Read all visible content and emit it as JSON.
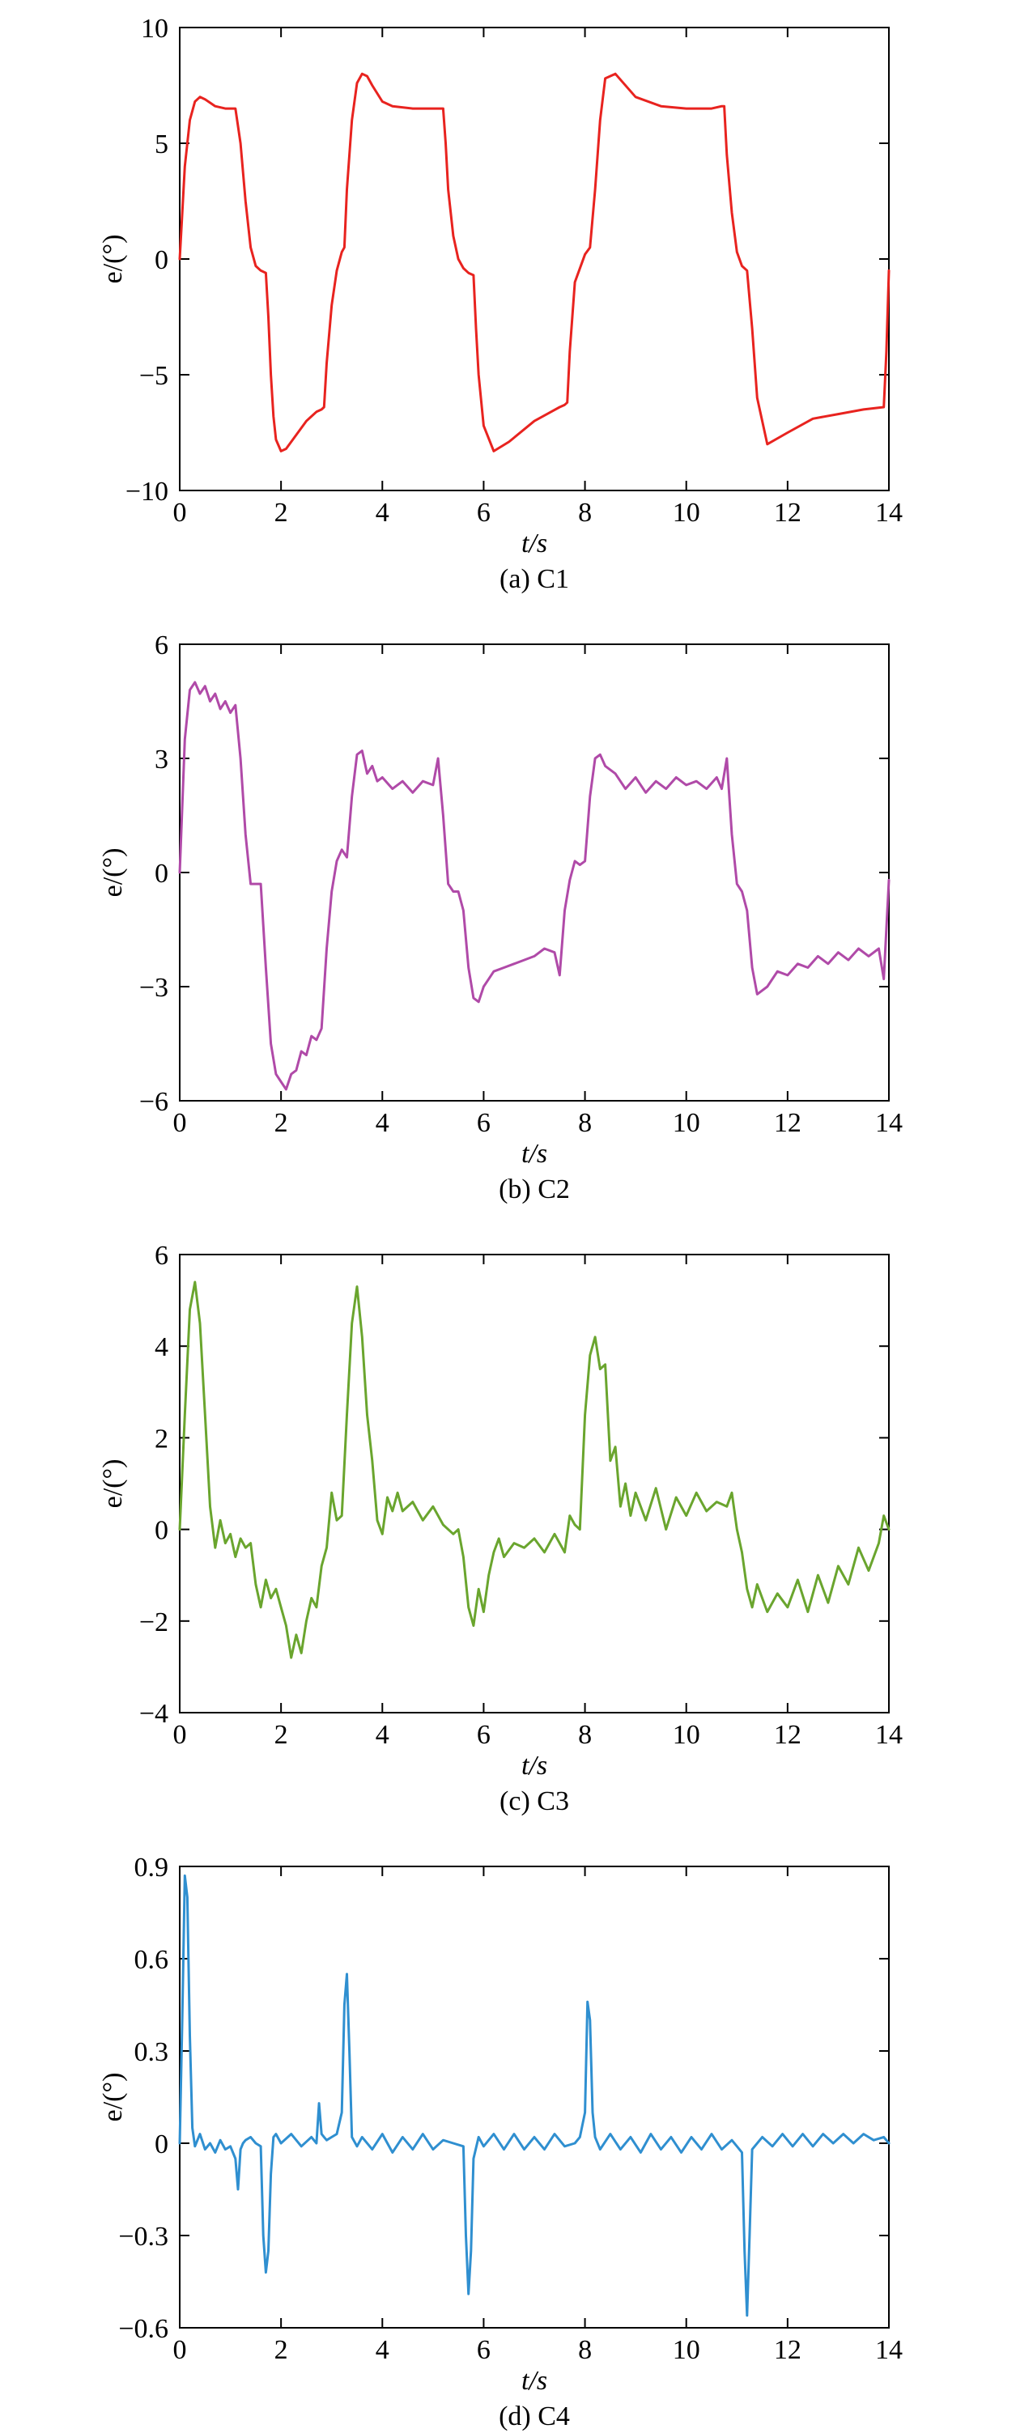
{
  "chart_data": [
    {
      "type": "line",
      "caption": "(a) C1",
      "xlabel": "t/s",
      "ylabel": "e/(°)",
      "xlim": [
        0,
        14
      ],
      "ylim": [
        -10,
        10
      ],
      "xticks": [
        "0",
        "2",
        "4",
        "6",
        "8",
        "10",
        "12",
        "14"
      ],
      "yticks": [
        "−10",
        "−5",
        "0",
        "5",
        "10"
      ],
      "ytick_values": [
        -10,
        -5,
        0,
        5,
        10
      ],
      "grid": false,
      "color": "#e8231f",
      "series": [
        {
          "x": [
            0,
            0.1,
            0.2,
            0.3,
            0.4,
            0.5,
            0.7,
            0.9,
            1.1,
            1.2,
            1.3,
            1.4,
            1.5,
            1.6,
            1.7,
            1.75,
            1.8,
            1.85,
            1.9,
            2.0,
            2.1,
            2.3,
            2.5,
            2.7,
            2.8,
            2.85,
            2.9,
            3.0,
            3.1,
            3.2,
            3.25,
            3.3,
            3.4,
            3.5,
            3.6,
            3.7,
            3.8,
            4.0,
            4.2,
            4.6,
            5.0,
            5.2,
            5.25,
            5.3,
            5.4,
            5.5,
            5.6,
            5.7,
            5.8,
            5.85,
            5.9,
            6.0,
            6.2,
            6.5,
            7.0,
            7.5,
            7.6,
            7.65,
            7.7,
            7.8,
            8.0,
            8.1,
            8.2,
            8.3,
            8.4,
            8.6,
            9.0,
            9.5,
            10.0,
            10.5,
            10.7,
            10.75,
            10.8,
            10.9,
            11.0,
            11.1,
            11.2,
            11.3,
            11.4,
            11.6,
            12.0,
            12.5,
            13.0,
            13.5,
            13.9,
            13.95,
            14.0
          ],
          "y": [
            0,
            4.0,
            6.0,
            6.8,
            7.0,
            6.9,
            6.6,
            6.5,
            6.5,
            5.0,
            2.5,
            0.5,
            -0.3,
            -0.5,
            -0.6,
            -2.5,
            -5.0,
            -6.8,
            -7.8,
            -8.3,
            -8.2,
            -7.6,
            -7.0,
            -6.6,
            -6.5,
            -6.4,
            -4.5,
            -2.0,
            -0.5,
            0.3,
            0.5,
            3.0,
            6.0,
            7.6,
            8.0,
            7.9,
            7.5,
            6.8,
            6.6,
            6.5,
            6.5,
            6.5,
            5.0,
            3.0,
            1.0,
            0.0,
            -0.4,
            -0.6,
            -0.7,
            -3.0,
            -5.0,
            -7.2,
            -8.3,
            -7.9,
            -7.0,
            -6.4,
            -6.3,
            -6.2,
            -4.0,
            -1.0,
            0.2,
            0.5,
            3.0,
            6.0,
            7.8,
            8.0,
            7.0,
            6.6,
            6.5,
            6.5,
            6.6,
            6.6,
            4.5,
            2.0,
            0.3,
            -0.3,
            -0.5,
            -3.0,
            -6.0,
            -8.0,
            -7.5,
            -6.9,
            -6.7,
            -6.5,
            -6.4,
            -4.0,
            -0.5
          ]
        }
      ]
    },
    {
      "type": "line",
      "caption": "(b) C2",
      "xlabel": "t/s",
      "ylabel": "e/(°)",
      "xlim": [
        0,
        14
      ],
      "ylim": [
        -6,
        6
      ],
      "xticks": [
        "0",
        "2",
        "4",
        "6",
        "8",
        "10",
        "12",
        "14"
      ],
      "yticks": [
        "−6",
        "−3",
        "0",
        "3",
        "6"
      ],
      "ytick_values": [
        -6,
        -3,
        0,
        3,
        6
      ],
      "grid": false,
      "color": "#b04aa8",
      "series": [
        {
          "x": [
            0,
            0.1,
            0.2,
            0.3,
            0.4,
            0.5,
            0.6,
            0.7,
            0.8,
            0.9,
            1.0,
            1.1,
            1.2,
            1.3,
            1.4,
            1.6,
            1.7,
            1.8,
            1.9,
            2.0,
            2.1,
            2.2,
            2.3,
            2.4,
            2.5,
            2.6,
            2.7,
            2.8,
            2.9,
            3.0,
            3.1,
            3.2,
            3.3,
            3.4,
            3.5,
            3.6,
            3.7,
            3.8,
            3.9,
            4.0,
            4.2,
            4.4,
            4.6,
            4.8,
            5.0,
            5.1,
            5.2,
            5.3,
            5.4,
            5.5,
            5.6,
            5.7,
            5.8,
            5.9,
            6.0,
            6.1,
            6.2,
            6.4,
            6.6,
            6.8,
            7.0,
            7.2,
            7.4,
            7.5,
            7.6,
            7.7,
            7.8,
            7.9,
            8.0,
            8.1,
            8.2,
            8.3,
            8.4,
            8.6,
            8.8,
            9.0,
            9.2,
            9.4,
            9.6,
            9.8,
            10.0,
            10.2,
            10.4,
            10.6,
            10.7,
            10.8,
            10.9,
            11.0,
            11.1,
            11.2,
            11.3,
            11.4,
            11.6,
            11.8,
            12.0,
            12.2,
            12.4,
            12.6,
            12.8,
            13.0,
            13.2,
            13.4,
            13.6,
            13.8,
            13.9,
            14.0
          ],
          "y": [
            0,
            3.5,
            4.8,
            5.0,
            4.7,
            4.9,
            4.5,
            4.7,
            4.3,
            4.5,
            4.2,
            4.4,
            3.0,
            1.0,
            -0.3,
            -0.3,
            -2.5,
            -4.5,
            -5.3,
            -5.5,
            -5.7,
            -5.3,
            -5.2,
            -4.7,
            -4.8,
            -4.3,
            -4.4,
            -4.1,
            -2.0,
            -0.5,
            0.3,
            0.6,
            0.4,
            2.0,
            3.1,
            3.2,
            2.6,
            2.8,
            2.4,
            2.5,
            2.2,
            2.4,
            2.1,
            2.4,
            2.3,
            3.0,
            1.5,
            -0.3,
            -0.5,
            -0.5,
            -1.0,
            -2.5,
            -3.3,
            -3.4,
            -3.0,
            -2.8,
            -2.6,
            -2.5,
            -2.4,
            -2.3,
            -2.2,
            -2.0,
            -2.1,
            -2.7,
            -1.0,
            -0.2,
            0.3,
            0.2,
            0.3,
            2.0,
            3.0,
            3.1,
            2.8,
            2.6,
            2.2,
            2.5,
            2.1,
            2.4,
            2.2,
            2.5,
            2.3,
            2.4,
            2.2,
            2.5,
            2.2,
            3.0,
            1.0,
            -0.3,
            -0.5,
            -1.0,
            -2.5,
            -3.2,
            -3.0,
            -2.6,
            -2.7,
            -2.4,
            -2.5,
            -2.2,
            -2.4,
            -2.1,
            -2.3,
            -2.0,
            -2.2,
            -2.0,
            -2.8,
            -0.2
          ]
        }
      ]
    },
    {
      "type": "line",
      "caption": "(c) C3",
      "xlabel": "t/s",
      "ylabel": "e/(°)",
      "xlim": [
        0,
        14
      ],
      "ylim": [
        -4,
        6
      ],
      "xticks": [
        "0",
        "2",
        "4",
        "6",
        "8",
        "10",
        "12",
        "14"
      ],
      "yticks": [
        "−4",
        "−2",
        "0",
        "2",
        "4",
        "6"
      ],
      "ytick_values": [
        -4,
        -2,
        0,
        2,
        4,
        6
      ],
      "grid": false,
      "color": "#6aa52e",
      "series": [
        {
          "x": [
            0,
            0.1,
            0.2,
            0.3,
            0.4,
            0.5,
            0.6,
            0.7,
            0.8,
            0.9,
            1.0,
            1.1,
            1.2,
            1.3,
            1.4,
            1.5,
            1.6,
            1.7,
            1.8,
            1.9,
            2.0,
            2.1,
            2.2,
            2.3,
            2.4,
            2.5,
            2.6,
            2.7,
            2.8,
            2.9,
            3.0,
            3.1,
            3.2,
            3.3,
            3.4,
            3.5,
            3.6,
            3.7,
            3.8,
            3.9,
            4.0,
            4.1,
            4.2,
            4.3,
            4.4,
            4.6,
            4.8,
            5.0,
            5.2,
            5.4,
            5.5,
            5.6,
            5.7,
            5.8,
            5.9,
            6.0,
            6.1,
            6.2,
            6.3,
            6.4,
            6.6,
            6.8,
            7.0,
            7.2,
            7.4,
            7.6,
            7.7,
            7.8,
            7.9,
            8.0,
            8.1,
            8.2,
            8.3,
            8.4,
            8.5,
            8.6,
            8.7,
            8.8,
            8.9,
            9.0,
            9.2,
            9.4,
            9.6,
            9.8,
            10.0,
            10.2,
            10.4,
            10.6,
            10.8,
            10.9,
            11.0,
            11.1,
            11.2,
            11.3,
            11.4,
            11.6,
            11.8,
            12.0,
            12.2,
            12.4,
            12.6,
            12.8,
            13.0,
            13.2,
            13.4,
            13.6,
            13.8,
            13.9,
            14.0
          ],
          "y": [
            0,
            2.5,
            4.8,
            5.4,
            4.5,
            2.5,
            0.5,
            -0.4,
            0.2,
            -0.3,
            -0.1,
            -0.6,
            -0.2,
            -0.4,
            -0.3,
            -1.2,
            -1.7,
            -1.1,
            -1.5,
            -1.3,
            -1.7,
            -2.1,
            -2.8,
            -2.3,
            -2.7,
            -2.0,
            -1.5,
            -1.7,
            -0.8,
            -0.4,
            0.8,
            0.2,
            0.3,
            2.5,
            4.5,
            5.3,
            4.2,
            2.5,
            1.5,
            0.2,
            -0.1,
            0.7,
            0.4,
            0.8,
            0.4,
            0.6,
            0.2,
            0.5,
            0.1,
            -0.1,
            0.0,
            -0.6,
            -1.7,
            -2.1,
            -1.3,
            -1.8,
            -1.0,
            -0.5,
            -0.2,
            -0.6,
            -0.3,
            -0.4,
            -0.2,
            -0.5,
            -0.1,
            -0.5,
            0.3,
            0.1,
            0.0,
            2.5,
            3.8,
            4.2,
            3.5,
            3.6,
            1.5,
            1.8,
            0.5,
            1.0,
            0.3,
            0.8,
            0.2,
            0.9,
            0.0,
            0.7,
            0.3,
            0.8,
            0.4,
            0.6,
            0.5,
            0.8,
            0.0,
            -0.5,
            -1.3,
            -1.7,
            -1.2,
            -1.8,
            -1.4,
            -1.7,
            -1.1,
            -1.8,
            -1.0,
            -1.6,
            -0.8,
            -1.2,
            -0.4,
            -0.9,
            -0.3,
            0.3,
            0.0
          ]
        }
      ]
    },
    {
      "type": "line",
      "caption": "(d) C4",
      "xlabel": "t/s",
      "ylabel": "e/(°)",
      "xlim": [
        0,
        14
      ],
      "ylim": [
        -0.6,
        0.9
      ],
      "xticks": [
        "0",
        "2",
        "4",
        "6",
        "8",
        "10",
        "12",
        "14"
      ],
      "yticks": [
        "−0.6",
        "−0.3",
        "0",
        "0.3",
        "0.6",
        "0.9"
      ],
      "ytick_values": [
        -0.6,
        -0.3,
        0,
        0.3,
        0.6,
        0.9
      ],
      "grid": false,
      "color": "#2f8fd0",
      "series": [
        {
          "x": [
            0,
            0.05,
            0.1,
            0.15,
            0.2,
            0.25,
            0.3,
            0.4,
            0.5,
            0.6,
            0.7,
            0.8,
            0.9,
            1.0,
            1.1,
            1.15,
            1.2,
            1.25,
            1.3,
            1.4,
            1.5,
            1.6,
            1.65,
            1.7,
            1.75,
            1.8,
            1.85,
            1.9,
            2.0,
            2.2,
            2.4,
            2.6,
            2.7,
            2.75,
            2.8,
            2.85,
            2.9,
            3.0,
            3.1,
            3.2,
            3.25,
            3.3,
            3.35,
            3.4,
            3.5,
            3.6,
            3.8,
            4.0,
            4.2,
            4.4,
            4.6,
            4.8,
            5.0,
            5.2,
            5.4,
            5.6,
            5.65,
            5.7,
            5.75,
            5.8,
            5.9,
            6.0,
            6.2,
            6.4,
            6.6,
            6.8,
            7.0,
            7.2,
            7.4,
            7.6,
            7.8,
            7.9,
            8.0,
            8.05,
            8.1,
            8.15,
            8.2,
            8.3,
            8.5,
            8.7,
            8.9,
            9.1,
            9.3,
            9.5,
            9.7,
            9.9,
            10.1,
            10.3,
            10.5,
            10.7,
            10.9,
            11.0,
            11.1,
            11.15,
            11.2,
            11.25,
            11.3,
            11.5,
            11.7,
            11.9,
            12.1,
            12.3,
            12.5,
            12.7,
            12.9,
            13.1,
            13.3,
            13.5,
            13.7,
            13.9,
            14.0
          ],
          "y": [
            0,
            0.4,
            0.87,
            0.8,
            0.35,
            0.05,
            -0.01,
            0.03,
            -0.02,
            0.0,
            -0.03,
            0.01,
            -0.02,
            -0.01,
            -0.05,
            -0.15,
            -0.02,
            0.0,
            0.01,
            0.02,
            0.0,
            -0.01,
            -0.3,
            -0.42,
            -0.35,
            -0.1,
            0.02,
            0.03,
            0.0,
            0.03,
            -0.01,
            0.02,
            0.0,
            0.13,
            0.03,
            0.02,
            0.01,
            0.02,
            0.03,
            0.1,
            0.45,
            0.55,
            0.3,
            0.02,
            -0.01,
            0.02,
            -0.02,
            0.03,
            -0.03,
            0.02,
            -0.02,
            0.03,
            -0.02,
            0.01,
            0.0,
            -0.01,
            -0.3,
            -0.49,
            -0.35,
            -0.05,
            0.02,
            -0.01,
            0.03,
            -0.02,
            0.03,
            -0.02,
            0.02,
            -0.02,
            0.03,
            -0.01,
            0.0,
            0.02,
            0.1,
            0.46,
            0.4,
            0.1,
            0.02,
            -0.02,
            0.03,
            -0.02,
            0.02,
            -0.03,
            0.03,
            -0.02,
            0.02,
            -0.03,
            0.02,
            -0.02,
            0.03,
            -0.02,
            0.01,
            -0.01,
            -0.03,
            -0.35,
            -0.56,
            -0.3,
            -0.02,
            0.02,
            -0.01,
            0.03,
            -0.01,
            0.03,
            -0.01,
            0.03,
            0.0,
            0.03,
            0.0,
            0.03,
            0.01,
            0.02,
            0.0
          ]
        }
      ]
    }
  ]
}
